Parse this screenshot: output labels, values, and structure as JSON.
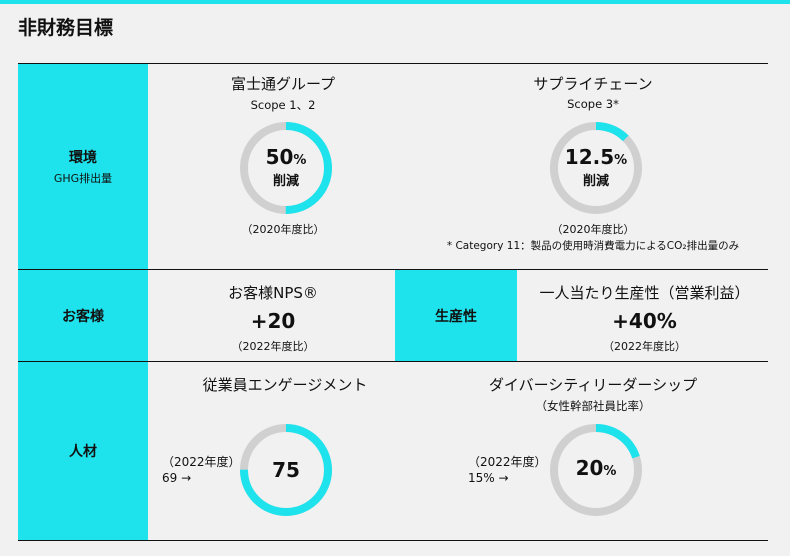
{
  "page_title": "非財務目標",
  "colors": {
    "accent": "#1ee3ec",
    "ring_track": "#d0d0d0"
  },
  "environment": {
    "category": "環境",
    "category_sub": "GHG排出量",
    "group": {
      "title": "富士通グループ",
      "scope": "Scope 1、2",
      "value": "50",
      "unit": "%",
      "label": "削減",
      "fill_fraction": 0.5,
      "baseline": "（2020年度比）"
    },
    "supply_chain": {
      "title": "サプライチェーン",
      "scope": "Scope 3*",
      "value": "12.5",
      "unit": "%",
      "label": "削減",
      "fill_fraction": 0.125,
      "baseline": "（2020年度比）",
      "footnote": "* Category 11：製品の使用時消費電力によるCO₂排出量のみ"
    }
  },
  "customer": {
    "category": "お客様",
    "title": "お客様NPS®",
    "value": "+20",
    "baseline": "（2022年度比）"
  },
  "productivity": {
    "category": "生産性",
    "title": "一人当たり生産性（営業利益）",
    "value": "+40%",
    "baseline": "（2022年度比）"
  },
  "people": {
    "category": "人材",
    "engagement": {
      "title": "従業員エンゲージメント",
      "base_year": "（2022年度）",
      "base_value": "69 →",
      "value": "75",
      "fill_fraction": 0.75
    },
    "diversity": {
      "title": "ダイバーシティリーダーシップ",
      "subtitle": "（女性幹部社員比率）",
      "base_year": "（2022年度）",
      "base_value": "15% →",
      "value": "20",
      "unit": "%",
      "fill_fraction": 0.2
    }
  }
}
